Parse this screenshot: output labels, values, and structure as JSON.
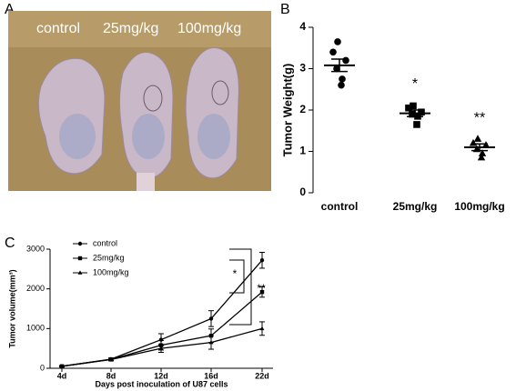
{
  "panels": [
    "A",
    "B",
    "C"
  ],
  "photo": {
    "labels": [
      "control",
      "25mg/kg",
      "100mg/kg"
    ]
  },
  "chart_data": [
    {
      "type": "dot",
      "ylabel": "Tumor Weight(g)",
      "categories": [
        "control",
        "25mg/kg",
        "100mg/kg"
      ],
      "markers": [
        "circle",
        "square",
        "triangle"
      ],
      "values": [
        [
          3.65,
          3.4,
          3.2,
          3.0,
          2.75,
          2.6
        ],
        [
          2.1,
          2.05,
          1.95,
          1.9,
          1.85,
          1.65
        ],
        [
          1.3,
          1.2,
          1.15,
          1.05,
          0.95,
          0.85
        ]
      ],
      "means": [
        3.08,
        1.92,
        1.1
      ],
      "sems": [
        0.15,
        0.08,
        0.08
      ],
      "annotations": [
        null,
        "*",
        "**"
      ],
      "ylim": [
        0,
        4
      ],
      "yticks": [
        0,
        1,
        2,
        3,
        4
      ],
      "color": "#000000"
    },
    {
      "type": "line",
      "ylabel": "Tumor volume(mm³)",
      "xlabel": "Days post inoculation of U87 cells",
      "categories": [
        "4d",
        "8d",
        "12d",
        "16d",
        "22d"
      ],
      "series": [
        {
          "name": "control",
          "marker": "circle",
          "color": "#000000",
          "values": [
            50,
            230,
            720,
            1250,
            2720
          ],
          "errors": [
            20,
            30,
            150,
            200,
            200
          ]
        },
        {
          "name": "25mg/kg",
          "marker": "square",
          "color": "#000000",
          "values": [
            50,
            220,
            580,
            820,
            1920
          ],
          "errors": [
            10,
            30,
            120,
            170,
            130
          ]
        },
        {
          "name": "100mg/kg",
          "marker": "triangle",
          "color": "#000000",
          "values": [
            50,
            220,
            500,
            650,
            1000
          ],
          "errors": [
            10,
            30,
            100,
            170,
            170
          ]
        }
      ],
      "annotations": [
        "*",
        "**"
      ],
      "legend": "upper left",
      "ylim": [
        0,
        3000
      ],
      "yticks": [
        0,
        1000,
        2000,
        3000
      ]
    }
  ]
}
